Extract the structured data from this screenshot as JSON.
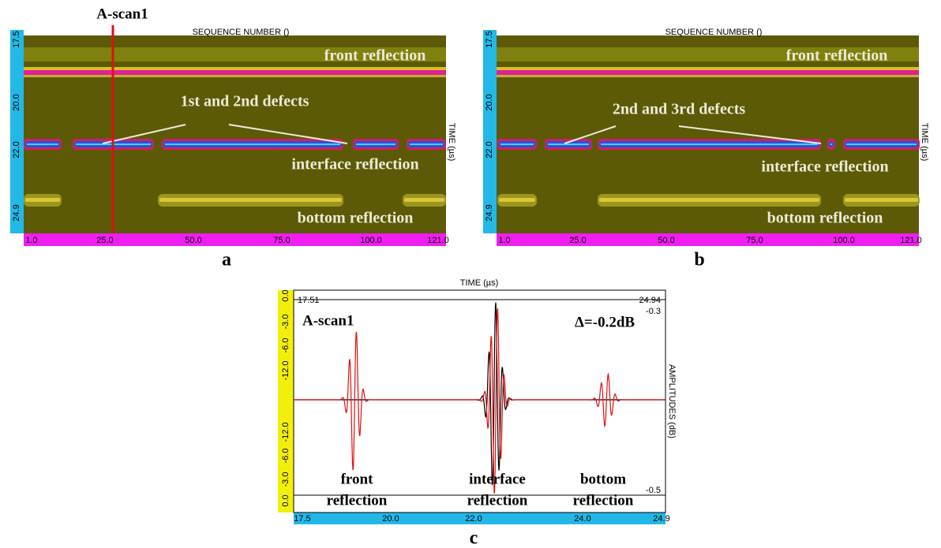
{
  "panels": [
    {
      "label": "a",
      "marker": "A-scan1",
      "top_title": "SEQUENCE NUMBER ()",
      "right_title": "TIME (µs)",
      "y_ticks": [
        "17.5",
        "20.0",
        "22.0",
        "24.9"
      ],
      "x_ticks": [
        "1.0",
        "25.0",
        "50.0",
        "75.0",
        "100.0",
        "121.0"
      ],
      "annotations": [
        "front reflection",
        "1st and 2nd defects",
        "interface reflection",
        "bottom reflection"
      ]
    },
    {
      "label": "b",
      "top_title": "SEQUENCE NUMBER ()",
      "right_title": "TIME (µs)",
      "y_ticks": [
        "17.5",
        "20.0",
        "22.0",
        "24.9"
      ],
      "x_ticks": [
        "1.0",
        "25.0",
        "50.0",
        "75.0",
        "100.0",
        "121.0"
      ],
      "annotations": [
        "front reflection",
        "2nd and 3rd defects",
        "interface reflection",
        "bottom reflection"
      ]
    }
  ],
  "ascan": {
    "label": "c",
    "top_title": "TIME (µs)",
    "right_title": "AMPLITUDES (dB)",
    "name": "A-scan1",
    "gain": "Δ=-0.2dB",
    "corner_labels": [
      "17.51",
      "24.94",
      "-0.3",
      "-0.5"
    ],
    "y_ticks": [
      "0.0",
      "-3.0",
      "-6.0",
      "-12.0",
      "-12.0",
      "-6.0",
      "-3.0",
      "0.0"
    ],
    "x_ticks": [
      "17.5",
      "20.0",
      "22.0",
      "24.0",
      "24.9"
    ],
    "annotations": [
      [
        "front",
        "reflection"
      ],
      [
        "interface",
        "reflection"
      ],
      [
        "bottom",
        "reflection"
      ]
    ]
  }
}
